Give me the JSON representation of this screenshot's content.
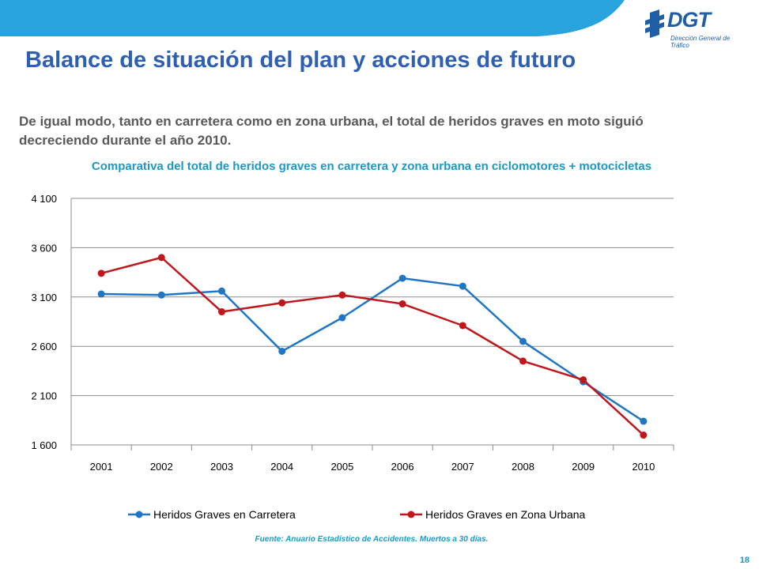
{
  "header": {
    "logo_text": "DGT",
    "logo_subtitle": "Dirección General de Tráfico",
    "title": "Balance de situación del plan y acciones de futuro"
  },
  "intro": "De igual modo, tanto en carretera como en zona urbana, el total de heridos graves en moto siguió decreciendo durante el año 2010.",
  "chart_data": {
    "type": "line",
    "title": "Comparativa del total de heridos graves en carretera y zona urbana en ciclomotores + motocicletas",
    "x": [
      "2001",
      "2002",
      "2003",
      "2004",
      "2005",
      "2006",
      "2007",
      "2008",
      "2009",
      "2010"
    ],
    "ylim": [
      1600,
      4100
    ],
    "yticks": [
      1600,
      2100,
      2600,
      3100,
      3600,
      4100
    ],
    "ytick_labels": [
      "1 600",
      "2 100",
      "2 600",
      "3 100",
      "3 600",
      "4 100"
    ],
    "grid": true,
    "legend_position": "bottom",
    "series": [
      {
        "name": "Heridos Graves en Carretera",
        "color": "#1f77c4",
        "values": [
          3130,
          3120,
          3160,
          2550,
          2890,
          3290,
          3210,
          2650,
          2240,
          1840
        ]
      },
      {
        "name": "Heridos Graves en Zona Urbana",
        "color": "#c0171d",
        "values": [
          3340,
          3500,
          2950,
          3040,
          3120,
          3030,
          2810,
          2450,
          2260,
          1700
        ]
      }
    ]
  },
  "source": "Fuente: Anuario Estadístico de Accidentes. Muertos a 30 días.",
  "page_number": "18"
}
